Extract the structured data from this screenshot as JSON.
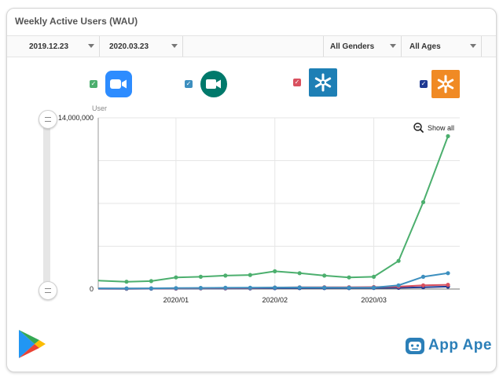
{
  "card": {
    "title": "Weekly Active Users (WAU)"
  },
  "filters": {
    "start_date": "2019.12.23",
    "end_date": "2020.03.23",
    "gender": "All Genders",
    "age": "All Ages"
  },
  "legend": [
    {
      "app_icon": "zoom-icon",
      "checkbox_color": "#4caf6e",
      "icon_bg": "#2d8cff",
      "checked": true
    },
    {
      "app_icon": "google-hangouts-meet-icon",
      "checkbox_color": "#3d8fbf",
      "icon_bg": "#00796b",
      "checked": true
    },
    {
      "app_icon": "asterisk-app-blue-icon",
      "checkbox_color": "#d9505f",
      "icon_bg": "#1e7fb5",
      "checked": true
    },
    {
      "app_icon": "asterisk-app-orange-icon",
      "checkbox_color": "#1f3a93",
      "icon_bg": "#f08a24",
      "checked": true
    }
  ],
  "controls": {
    "show_all": "Show all"
  },
  "branding": {
    "app_ape": "App Ape",
    "store_icon": "google-play-icon"
  },
  "chart_data": {
    "type": "line",
    "ylabel": "User",
    "ylim": [
      0,
      14000000
    ],
    "y_ticks": [
      0,
      14000000
    ],
    "y_tick_labels": [
      "0",
      "14,000,000"
    ],
    "x": [
      "2019-12-23",
      "2019-12-30",
      "2020-01-06",
      "2020-01-13",
      "2020-01-20",
      "2020-01-27",
      "2020-02-03",
      "2020-02-10",
      "2020-02-17",
      "2020-02-24",
      "2020-03-02",
      "2020-03-09",
      "2020-03-16",
      "2020-03-23"
    ],
    "x_tick_labels": [
      {
        "label": "2020/01",
        "at": "2020-01-06"
      },
      {
        "label": "2020/02",
        "at": "2020-02-03"
      },
      {
        "label": "2020/03",
        "at": "2020-03-02"
      }
    ],
    "grid": true,
    "series": [
      {
        "app_icon": "zoom-icon",
        "color": "#4caf6e",
        "values": [
          600000,
          650000,
          950000,
          1000000,
          1100000,
          1150000,
          1450000,
          1300000,
          1100000,
          950000,
          1000000,
          2300000,
          7100000,
          12500000
        ]
      },
      {
        "app_icon": "google-hangouts-meet-icon",
        "color": "#3d8fbf",
        "values": [
          50000,
          60000,
          80000,
          90000,
          100000,
          110000,
          120000,
          130000,
          120000,
          110000,
          120000,
          300000,
          1000000,
          1300000
        ]
      },
      {
        "app_icon": "asterisk-app-blue-icon",
        "color": "#d9505f",
        "values": [
          40000,
          50000,
          60000,
          70000,
          80000,
          90000,
          120000,
          140000,
          150000,
          150000,
          160000,
          200000,
          300000,
          350000
        ]
      },
      {
        "app_icon": "asterisk-app-orange-icon",
        "color": "#1f3a93",
        "values": [
          20000,
          30000,
          40000,
          50000,
          50000,
          60000,
          70000,
          80000,
          80000,
          80000,
          90000,
          100000,
          150000,
          200000
        ]
      }
    ]
  }
}
